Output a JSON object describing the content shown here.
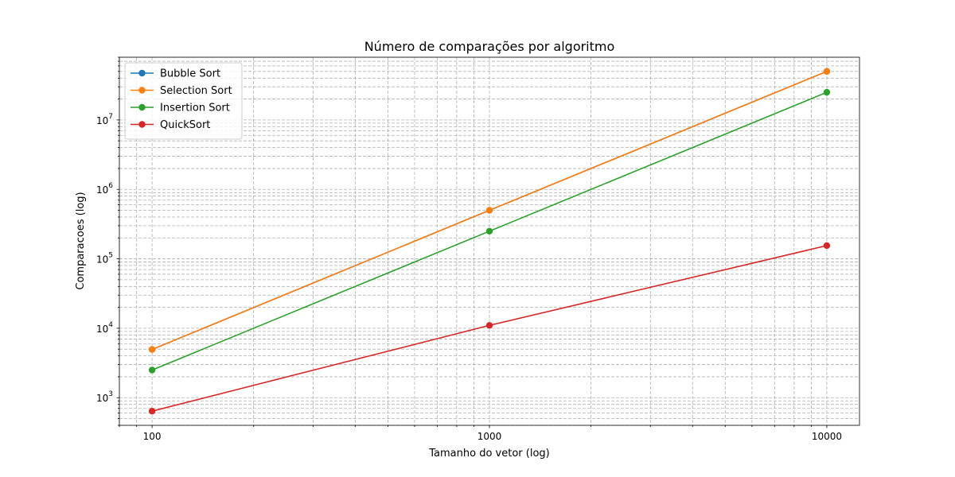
{
  "chart_data": {
    "type": "line",
    "title": "Número de comparações por algoritmo",
    "xlabel": "Tamanho do vetor (log)",
    "ylabel": "Comparacoes (log)",
    "xscale": "log",
    "yscale": "log",
    "xlim": [
      80,
      12500
    ],
    "ylim": [
      400,
      80000000
    ],
    "x": [
      100,
      1000,
      10000
    ],
    "x_tick_labels": [
      "100",
      "1000",
      "10000"
    ],
    "y_tick_values": [
      1000,
      10000,
      100000,
      1000000,
      10000000
    ],
    "y_tick_base": "10",
    "y_tick_exponents": [
      "3",
      "4",
      "5",
      "6",
      "7"
    ],
    "grid": true,
    "legend_position": "upper-left",
    "series": [
      {
        "name": "Bubble Sort",
        "color": "#1f77b4",
        "values": [
          4950,
          499500,
          49995000
        ]
      },
      {
        "name": "Selection Sort",
        "color": "#ff7f0e",
        "values": [
          4950,
          499500,
          49995000
        ]
      },
      {
        "name": "Insertion Sort",
        "color": "#2ca02c",
        "values": [
          2500,
          250000,
          25000000
        ]
      },
      {
        "name": "QuickSort",
        "color": "#d62728",
        "values": [
          640,
          11000,
          155000
        ]
      }
    ]
  }
}
